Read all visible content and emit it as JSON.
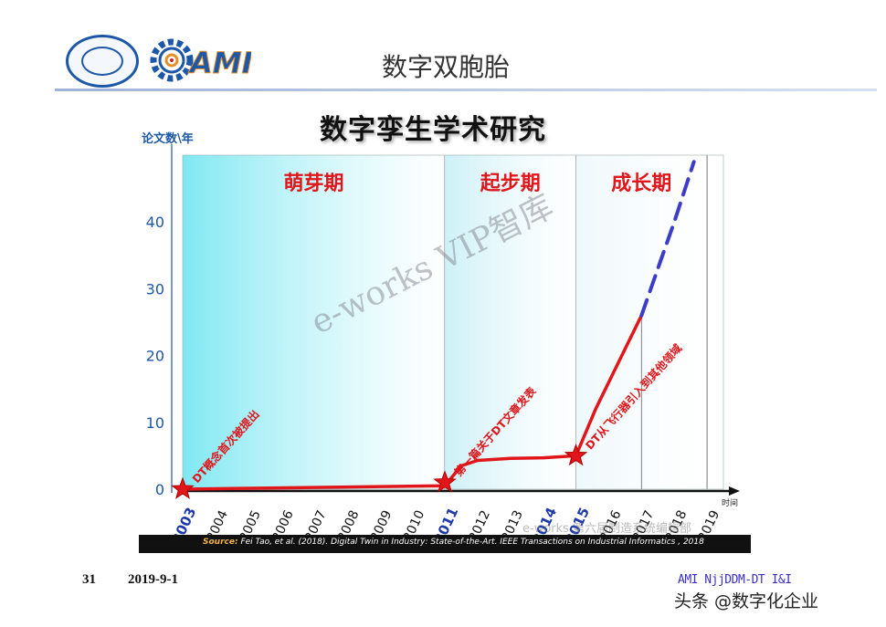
{
  "page": {
    "title": "数字双胞胎",
    "footer_page": "31",
    "footer_date": "2019-9-1",
    "footer_lab": "AMI NjjDDM-DT I&I",
    "credit": "头条 @数字化企业",
    "logo_text": "AMI",
    "watermark": "e-works VIP智库",
    "faint_watermark": "e-works 第六届制造系统编辑部"
  },
  "source": {
    "label": "Source:",
    "text": "Fei Tao, et al. (2018). Digital Twin in Industry: State-of-the-Art. IEEE Transactions on Industrial Informatics , 2018"
  },
  "chart_data": {
    "type": "line",
    "title": "数字孪生学术研究",
    "ylabel": "论文数\\年",
    "xlabel": "时间",
    "ylim": [
      0,
      50
    ],
    "yticks": [
      0,
      10,
      20,
      30,
      40
    ],
    "x": [
      2003,
      2004,
      2005,
      2006,
      2007,
      2008,
      2009,
      2010,
      2011,
      2012,
      2013,
      2014,
      2015,
      2016,
      2017,
      2018,
      2019
    ],
    "highlighted_years": [
      2003,
      2011,
      2014,
      2015
    ],
    "phases": [
      {
        "name": "萌芽期",
        "start": 2003,
        "end": 2011,
        "color": "#7fe8f2"
      },
      {
        "name": "起步期",
        "start": 2011,
        "end": 2015,
        "color": "#cdf1f7"
      },
      {
        "name": "成长期",
        "start": 2015,
        "end": 2019,
        "color": "#eef8fb"
      }
    ],
    "series": [
      {
        "style": "solid",
        "color": "#e0161b",
        "points": [
          [
            2003,
            0
          ],
          [
            2011,
            0.5
          ],
          [
            2011.5,
            3.5
          ],
          [
            2012,
            4.3
          ],
          [
            2013,
            4.6
          ],
          [
            2014,
            4.7
          ],
          [
            2015,
            5
          ],
          [
            2015.6,
            12
          ],
          [
            2016.3,
            19
          ],
          [
            2017,
            26
          ]
        ]
      },
      {
        "style": "dashed",
        "color": "#3c3cc8",
        "points": [
          [
            2017,
            26
          ],
          [
            2017.5,
            33
          ],
          [
            2018,
            40
          ],
          [
            2018.6,
            49
          ]
        ]
      }
    ],
    "milestones": [
      {
        "year": 2003,
        "value": 0,
        "label": "DT概念首次被提出"
      },
      {
        "year": 2011,
        "value": 1,
        "label": "第一篇关于DT文章发表"
      },
      {
        "year": 2015,
        "value": 5,
        "label": "DT从飞行器引入到其他领域"
      }
    ]
  }
}
